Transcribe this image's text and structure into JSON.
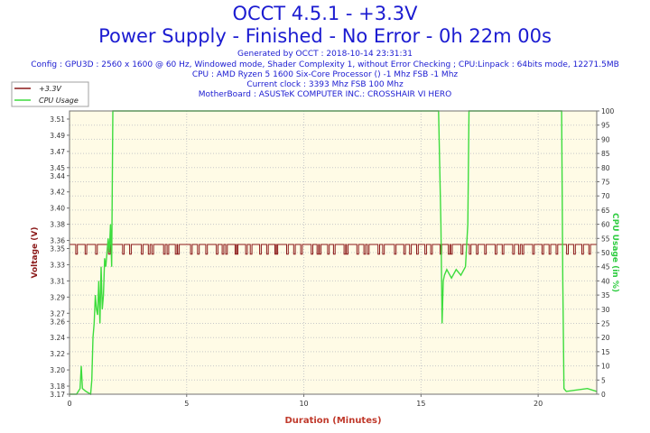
{
  "header": {
    "title": "OCCT 4.5.1 - +3.3V",
    "subtitle": "Power Supply - Finished - No Error - 0h 22m 00s",
    "info_lines": [
      "Generated by OCCT : 2018-10-14 23:31:31",
      "Config : GPU3D : 2560 x 1600 @ 60 Hz, Windowed mode, Shader Complexity 1, without Error Checking ; CPU:Linpack : 64bits mode, 12271.5MB",
      "CPU : AMD Ryzen 5 1600 Six-Core Processor () -1 Mhz FSB -1 Mhz",
      "Current clock : 3393 Mhz FSB 100 Mhz",
      "MotherBoard : ASUSTeK COMPUTER INC.: CROSSHAIR VI HERO"
    ]
  },
  "chart_data": {
    "type": "line",
    "xlabel": "Duration (Minutes)",
    "ylabel": "Voltage (V)",
    "y2label": "CPU Usage (in %)",
    "xlim": [
      0,
      22.5
    ],
    "ylim": [
      3.17,
      3.52
    ],
    "y2lim": [
      0,
      100
    ],
    "x_ticks": [
      0,
      5,
      10,
      15,
      20
    ],
    "y_ticks": [
      3.17,
      3.18,
      3.2,
      3.22,
      3.24,
      3.26,
      3.27,
      3.29,
      3.31,
      3.33,
      3.35,
      3.36,
      3.38,
      3.4,
      3.42,
      3.44,
      3.45,
      3.47,
      3.49,
      3.51
    ],
    "y2_ticks": [
      0,
      5,
      10,
      15,
      20,
      25,
      30,
      35,
      40,
      45,
      50,
      55,
      60,
      65,
      70,
      75,
      80,
      85,
      90,
      95,
      100
    ],
    "grid": true,
    "legend_position": "top-left",
    "plot_background": "#fffbe6",
    "grid_color": "#c8c8c8",
    "series": [
      {
        "name": "+3.3V",
        "axis": "left",
        "color": "#8b1a1a",
        "high": 3.355,
        "low": 3.343,
        "dips": [
          0.3,
          0.7,
          1.15,
          1.7,
          2.3,
          2.6,
          3.1,
          3.4,
          3.55,
          4.05,
          4.2,
          4.55,
          4.65,
          5.2,
          5.5,
          5.85,
          6.3,
          6.55,
          6.7,
          7.1,
          7.15,
          7.55,
          7.75,
          8.15,
          8.45,
          8.8,
          8.85,
          9.3,
          9.6,
          9.9,
          10.35,
          10.6,
          10.7,
          11.05,
          11.3,
          11.75,
          11.85,
          12.3,
          12.6,
          12.75,
          13.2,
          13.4,
          13.9,
          14.3,
          14.55,
          14.85,
          15.2,
          15.45,
          15.85,
          16.2,
          16.3,
          16.75,
          17.1,
          17.4,
          17.75,
          18.2,
          18.5,
          18.95,
          19.2,
          19.35,
          19.8,
          20.2,
          20.5,
          20.8,
          21.25,
          21.55,
          21.9,
          22.2
        ],
        "dip_width": 0.07
      },
      {
        "name": "CPU Usage",
        "axis": "right",
        "color": "#3ddc3d",
        "points": [
          [
            0,
            0
          ],
          [
            0.3,
            0
          ],
          [
            0.45,
            2
          ],
          [
            0.5,
            10
          ],
          [
            0.55,
            2
          ],
          [
            0.7,
            1
          ],
          [
            0.9,
            0
          ],
          [
            0.95,
            5
          ],
          [
            1.0,
            20
          ],
          [
            1.05,
            25
          ],
          [
            1.1,
            35
          ],
          [
            1.15,
            30
          ],
          [
            1.2,
            28
          ],
          [
            1.25,
            40
          ],
          [
            1.3,
            25
          ],
          [
            1.35,
            45
          ],
          [
            1.4,
            30
          ],
          [
            1.45,
            35
          ],
          [
            1.5,
            48
          ],
          [
            1.55,
            45
          ],
          [
            1.6,
            50
          ],
          [
            1.65,
            55
          ],
          [
            1.7,
            50
          ],
          [
            1.75,
            60
          ],
          [
            1.8,
            45
          ],
          [
            1.85,
            100
          ],
          [
            15.75,
            100
          ],
          [
            15.8,
            80
          ],
          [
            15.85,
            60
          ],
          [
            15.9,
            25
          ],
          [
            15.95,
            40
          ],
          [
            16.0,
            42
          ],
          [
            16.1,
            44
          ],
          [
            16.3,
            41
          ],
          [
            16.5,
            44
          ],
          [
            16.7,
            42
          ],
          [
            16.9,
            45
          ],
          [
            17.0,
            60
          ],
          [
            17.05,
            100
          ],
          [
            21.0,
            100
          ],
          [
            21.05,
            40
          ],
          [
            21.1,
            2
          ],
          [
            21.2,
            1
          ],
          [
            22.1,
            2
          ],
          [
            22.5,
            1
          ]
        ]
      }
    ]
  }
}
